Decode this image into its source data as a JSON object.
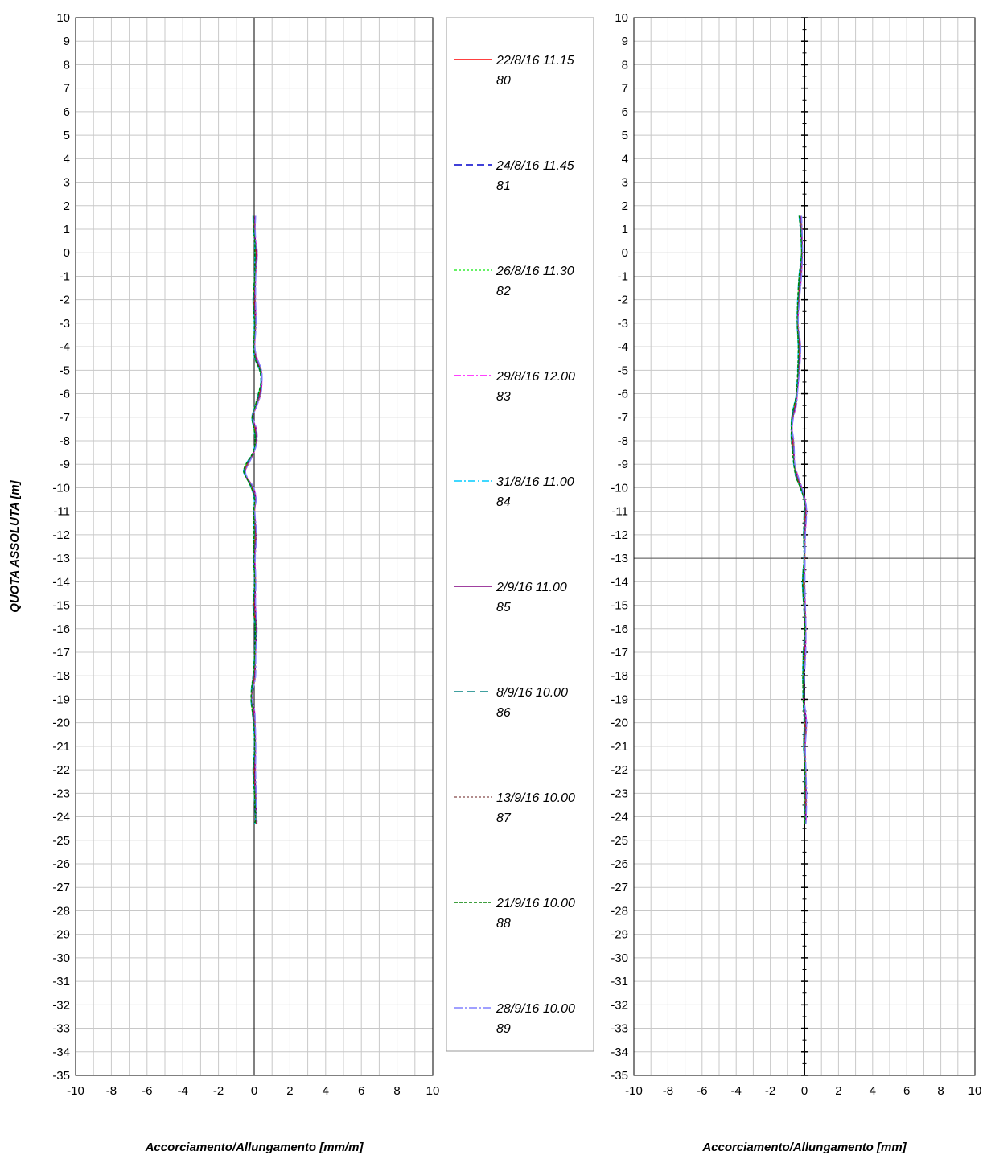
{
  "legend": [
    {
      "date": "22/8/16 11.15",
      "num": "80",
      "color": "#ff0000",
      "dash": ""
    },
    {
      "date": "24/8/16 11.45",
      "num": "81",
      "color": "#0000cc",
      "dash": "9,5"
    },
    {
      "date": "26/8/16 11.30",
      "num": "82",
      "color": "#33ee33",
      "dash": "3,2"
    },
    {
      "date": "29/8/16 12.00",
      "num": "83",
      "color": "#ff00ff",
      "dash": "8,3,2,3"
    },
    {
      "date": "31/8/16 11.00",
      "num": "84",
      "color": "#00ccff",
      "dash": "9,3,2,3"
    },
    {
      "date": "2/9/16 11.00",
      "num": "85",
      "color": "#800080",
      "dash": ""
    },
    {
      "date": "8/9/16 10.00",
      "num": "86",
      "color": "#008080",
      "dash": "10,6"
    },
    {
      "date": "13/9/16 10.00",
      "num": "87",
      "color": "#996666",
      "dash": "3,2"
    },
    {
      "date": "21/9/16 10.00",
      "num": "88",
      "color": "#008000",
      "dash": "4,2"
    },
    {
      "date": "28/9/16 10.00",
      "num": "89",
      "color": "#8080ff",
      "dash": "10,3,2,3"
    }
  ],
  "chart_data": [
    {
      "type": "line",
      "title": "",
      "xlabel": "Accorciamento/Allungamento [mm/m]",
      "ylabel": "QUOTA ASSOLUTA [m]",
      "xlim": [
        -10,
        10
      ],
      "ylim": [
        -35,
        10
      ],
      "xticks": [
        -10,
        -8,
        -6,
        -4,
        -2,
        0,
        2,
        4,
        6,
        8,
        10
      ],
      "grid": true,
      "depth": [
        1.6,
        1,
        0.5,
        0,
        -0.5,
        -1,
        -2,
        -3,
        -4,
        -4.5,
        -5,
        -5.5,
        -6,
        -6.5,
        -7,
        -7.5,
        -8,
        -8.5,
        -9,
        -9.3,
        -9.6,
        -10,
        -10.5,
        -11,
        -12,
        -13,
        -14,
        -15,
        -16,
        -17,
        -18,
        -18.5,
        -19,
        -19.5,
        -20,
        -21,
        -22,
        -23,
        -24,
        -24.3
      ],
      "series": [
        {
          "values": [
            0.0,
            0.0,
            0.05,
            0.1,
            0.08,
            0.05,
            0.0,
            0.05,
            0.0,
            0.1,
            0.35,
            0.4,
            0.3,
            0.1,
            -0.1,
            0.05,
            0.1,
            -0.05,
            -0.4,
            -0.55,
            -0.4,
            -0.1,
            0.05,
            0.0,
            0.05,
            0.0,
            0.05,
            0.0,
            0.1,
            0.05,
            0.0,
            -0.1,
            -0.15,
            -0.05,
            0.0,
            0.05,
            0.0,
            0.05,
            0.1,
            0.1
          ]
        }
      ]
    },
    {
      "type": "line",
      "title": "",
      "xlabel": "Accorciamento/Allungamento [mm]",
      "ylabel": "",
      "xlim": [
        -10,
        10
      ],
      "ylim": [
        -35,
        10
      ],
      "xticks": [
        -10,
        -8,
        -6,
        -4,
        -2,
        0,
        2,
        4,
        6,
        8,
        10
      ],
      "grid": true,
      "depth": [
        1.6,
        1,
        0,
        -1,
        -2,
        -3,
        -4,
        -5,
        -6,
        -6.5,
        -7,
        -7.5,
        -8,
        -8.5,
        -9,
        -9.5,
        -10,
        -10.5,
        -11,
        -12,
        -13,
        -14,
        -15,
        -16,
        -17,
        -18,
        -19,
        -20,
        -21,
        -22,
        -23,
        -24,
        -24.3
      ],
      "series": [
        {
          "values": [
            -0.25,
            -0.2,
            -0.15,
            -0.25,
            -0.35,
            -0.4,
            -0.3,
            -0.35,
            -0.45,
            -0.55,
            -0.7,
            -0.75,
            -0.7,
            -0.65,
            -0.6,
            -0.45,
            -0.2,
            0.0,
            0.05,
            0.0,
            0.0,
            -0.05,
            0.0,
            0.05,
            0.0,
            -0.05,
            -0.05,
            0.05,
            0.0,
            0.05,
            0.05,
            0.05,
            0.05
          ]
        }
      ]
    }
  ]
}
